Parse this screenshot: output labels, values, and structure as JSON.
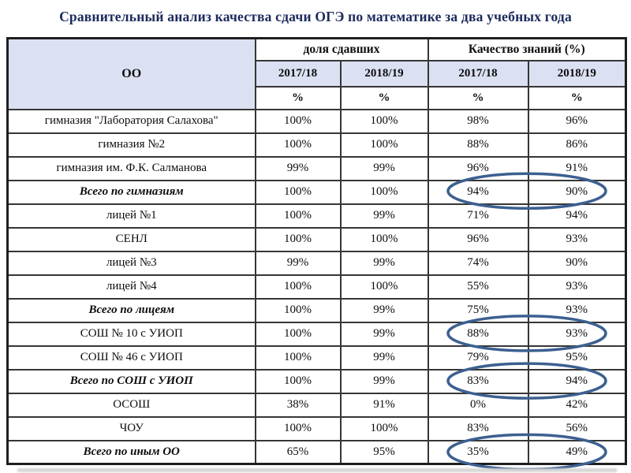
{
  "title": "Сравнительный анализ качества сдачи ОГЭ по математике за два учебных года",
  "table": {
    "corner_header": "ОО",
    "group_headers": [
      "доля сдавших",
      "Качество знаний (%)"
    ],
    "year_headers": [
      "2017/18",
      "2018/19",
      "2017/18",
      "2018/19"
    ],
    "unit_headers": [
      "%",
      "%",
      "%",
      "%"
    ],
    "rows": [
      {
        "name": "гимназия \"Лаборатория Салахова\"",
        "values": [
          "100%",
          "100%",
          "98%",
          "96%"
        ],
        "total": false,
        "circled": false
      },
      {
        "name": "гимназия №2",
        "values": [
          "100%",
          "100%",
          "88%",
          "86%"
        ],
        "total": false,
        "circled": false
      },
      {
        "name": "гимназия им. Ф.К. Салманова",
        "values": [
          "99%",
          "99%",
          "96%",
          "91%"
        ],
        "total": false,
        "circled": false
      },
      {
        "name": "Всего по гимназиям",
        "values": [
          "100%",
          "100%",
          "94%",
          "90%"
        ],
        "total": true,
        "circled": true
      },
      {
        "name": "лицей №1",
        "values": [
          "100%",
          "99%",
          "71%",
          "94%"
        ],
        "total": false,
        "circled": false
      },
      {
        "name": "СЕНЛ",
        "values": [
          "100%",
          "100%",
          "96%",
          "93%"
        ],
        "total": false,
        "circled": false
      },
      {
        "name": "лицей №3",
        "values": [
          "99%",
          "99%",
          "74%",
          "90%"
        ],
        "total": false,
        "circled": false
      },
      {
        "name": "лицей №4",
        "values": [
          "100%",
          "100%",
          "55%",
          "93%"
        ],
        "total": false,
        "circled": false
      },
      {
        "name": "Всего по лицеям",
        "values": [
          "100%",
          "99%",
          "75%",
          "93%"
        ],
        "total": true,
        "circled": false
      },
      {
        "name": "СОШ № 10 с УИОП",
        "values": [
          "100%",
          "99%",
          "88%",
          "93%"
        ],
        "total": false,
        "circled": true
      },
      {
        "name": "СОШ № 46 с УИОП",
        "values": [
          "100%",
          "99%",
          "79%",
          "95%"
        ],
        "total": false,
        "circled": false
      },
      {
        "name": "Всего по СОШ с УИОП",
        "values": [
          "100%",
          "99%",
          "83%",
          "94%"
        ],
        "total": true,
        "circled": true
      },
      {
        "name": "ОСОШ",
        "values": [
          "38%",
          "91%",
          "0%",
          "42%"
        ],
        "total": false,
        "circled": false
      },
      {
        "name": "ЧОУ",
        "values": [
          "100%",
          "100%",
          "83%",
          "56%"
        ],
        "total": false,
        "circled": false
      },
      {
        "name": "Всего по иным ОО",
        "values": [
          "65%",
          "95%",
          "35%",
          "49%"
        ],
        "total": true,
        "circled": true
      }
    ]
  },
  "colors": {
    "title": "#1b2a5c",
    "header_fill": "#dbe0f2",
    "ellipse": "#3c6090",
    "grid": "#363636"
  }
}
